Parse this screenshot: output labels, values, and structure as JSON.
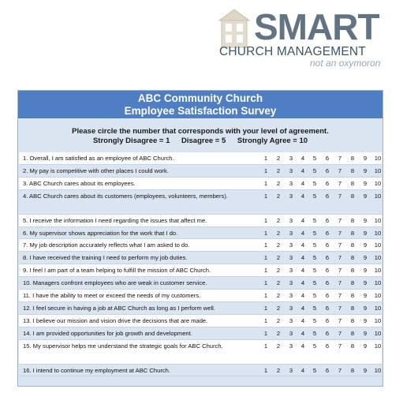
{
  "logo": {
    "word": "SMART",
    "subtitle": "CHURCH MANAGEMENT",
    "tagline": "not an oxymoron"
  },
  "survey": {
    "title_line1": "ABC Community Church",
    "title_line2": "Employee Satisfaction Survey",
    "instruction": "Please circle the number that corresponds with your level of agreement.",
    "scale_strongly_disagree": "Strongly Disagree = 1",
    "scale_disagree": "Disagree = 5",
    "scale_strongly_agree": "Strongly Agree = 10",
    "rating_options": [
      "1",
      "2",
      "3",
      "4",
      "5",
      "6",
      "7",
      "8",
      "9",
      "10"
    ],
    "statements": [
      "1.   Overall, I am satisfied as an employee of ABC Church.",
      "2.   My pay is competitive with other places I could work.",
      "3.   ABC Church cares about its employees.",
      "4.   ABC Church cares about its customers (employees, volunteers, members).",
      "5.   I receive the information I need regarding the issues that affect me.",
      "6.   My supervisor shows appreciation for the work that I do.",
      "7.   My job description accurately reflects what I am asked to do.",
      "8.   I have received the training I need to perform my job duties.",
      "9.   I feel I am part of a team helping to fulfill the mission of ABC Church.",
      "10.   Managers confront employees who are weak in customer service.",
      "11.   I have the ability to meet or exceed the needs of my customers.",
      "12.  I feel secure in having a job at ABC Church as long as I perform well.",
      "13.  I believe our mission and vision drive the decisions that are made.",
      "14.  I am provided opportunities for job growth and development.",
      "15.  My supervisor helps me understand the strategic goals for ABC Church.",
      "16.  I intend to continue my employment at ABC Church."
    ]
  },
  "colors": {
    "header_blue": "#4f7ec2",
    "light_blue": "#dbe5f1",
    "logo_gray": "#627383"
  }
}
